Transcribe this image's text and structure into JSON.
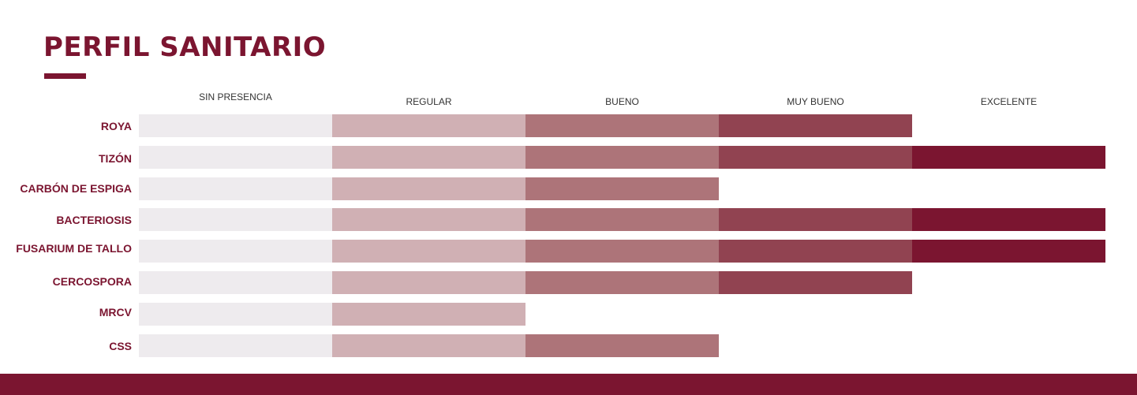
{
  "title": "PERFIL SANITARIO",
  "chart_data": {
    "type": "bar",
    "levels": [
      "SIN PRESENCIA",
      "REGULAR",
      "BUENO",
      "MUY BUENO",
      "EXCELENTE"
    ],
    "level_colors": [
      "#eeebee",
      "#d0b0b4",
      "#ad7479",
      "#914351",
      "#7b1530"
    ],
    "categories": [
      "ROYA",
      "TIZÓN",
      "CARBÓN DE ESPIGA",
      "BACTERIOSIS",
      "FUSARIUM DE TALLO",
      "CERCOSPORA",
      "MRCV",
      "CSS"
    ],
    "values": [
      4,
      5,
      3,
      5,
      5,
      4,
      2,
      3
    ],
    "xlim": [
      0,
      5
    ]
  }
}
